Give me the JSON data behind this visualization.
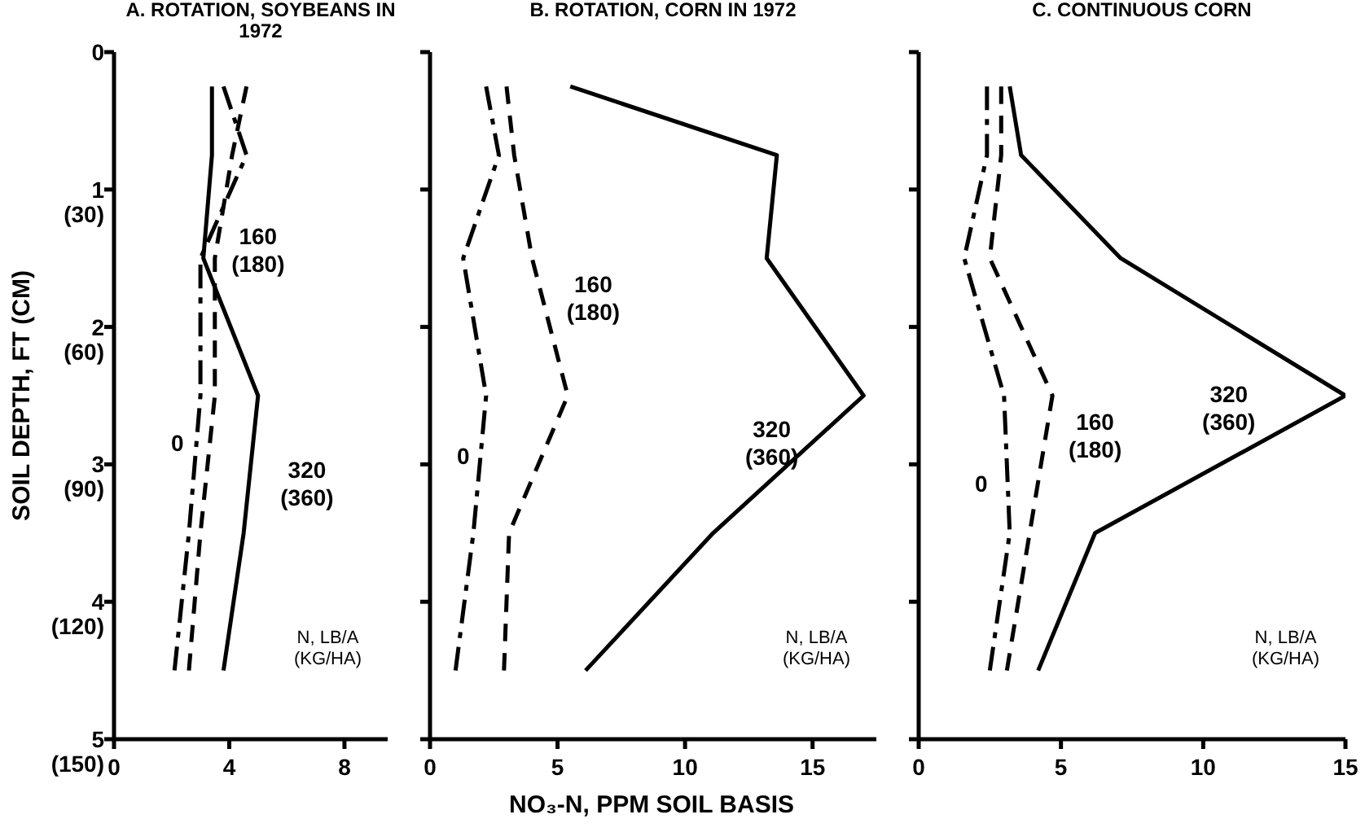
{
  "chart_data": [
    {
      "type": "line",
      "title": "A. ROTATION, SOYBEANS IN 1972",
      "y2label": "SOIL DEPTH, FT (CM)",
      "legend_title": "N, LB/A (KG/HA)",
      "xlim": [
        0,
        9.5
      ],
      "xticks": [
        0,
        4,
        8
      ],
      "ylim": [
        5,
        0
      ],
      "yticks": [
        0,
        1,
        2,
        3,
        4,
        5
      ],
      "y2lim": [
        150,
        0
      ],
      "y2ticks": [
        {
          "value": 30,
          "label": "(30)"
        },
        {
          "value": 60,
          "label": "(60)"
        },
        {
          "value": 90,
          "label": "(90)"
        },
        {
          "value": 120,
          "label": "(120)"
        },
        {
          "value": 150,
          "label": "(150)"
        }
      ],
      "series": [
        {
          "name": "0",
          "color": "#000000",
          "line_style": "dashdot",
          "x": [
            3.8,
            4.6,
            3.0,
            3.0,
            2.6,
            2.1
          ],
          "values": [
            0.25,
            0.75,
            1.5,
            2.5,
            3.5,
            4.5
          ]
        },
        {
          "name": "160 (180)",
          "color": "#000000",
          "line_style": "dashed",
          "x": [
            4.6,
            4.1,
            3.5,
            3.5,
            3.0,
            2.6
          ],
          "values": [
            0.25,
            0.75,
            1.5,
            2.5,
            3.5,
            4.5
          ]
        },
        {
          "name": "320 (360)",
          "color": "#000000",
          "line_style": "solid",
          "x": [
            3.4,
            3.4,
            3.1,
            5.0,
            4.5,
            3.8
          ],
          "values": [
            0.25,
            0.75,
            1.5,
            2.5,
            3.5,
            4.5
          ]
        }
      ]
    },
    {
      "type": "line",
      "title": "B. ROTATION, CORN IN 1972",
      "xlabel": "NO₃-N, PPM SOIL BASIS",
      "legend_title": "N, LB/A (KG/HA)",
      "xlim": [
        0,
        17.5
      ],
      "xticks": [
        0,
        5,
        10,
        15
      ],
      "ylim": [
        5,
        0
      ],
      "yticks": [
        0,
        1,
        2,
        3,
        4,
        5
      ],
      "tick_labels": "x",
      "series": [
        {
          "name": "0",
          "color": "#000000",
          "line_style": "dashdot",
          "x": [
            2.2,
            2.7,
            1.3,
            2.2,
            1.7,
            1.0
          ],
          "values": [
            0.25,
            0.75,
            1.5,
            2.5,
            3.5,
            4.5
          ]
        },
        {
          "name": "160 (180)",
          "color": "#000000",
          "line_style": "dashed",
          "x": [
            3.0,
            3.3,
            4.0,
            5.4,
            3.1,
            2.9
          ],
          "values": [
            0.25,
            0.75,
            1.5,
            2.5,
            3.5,
            4.5
          ]
        },
        {
          "name": "320 (360)",
          "color": "#000000",
          "line_style": "solid",
          "x": [
            5.5,
            13.6,
            13.2,
            17.0,
            11.1,
            6.1
          ],
          "values": [
            0.25,
            0.75,
            1.5,
            2.5,
            3.5,
            4.5
          ]
        }
      ]
    },
    {
      "type": "line",
      "title": "C. CONTINUOUS CORN",
      "legend_title": "N, LB/A (KG/HA)",
      "xlim": [
        0,
        15
      ],
      "xticks": [
        0,
        5,
        10,
        15
      ],
      "ylim": [
        5,
        0
      ],
      "yticks": [
        0,
        1,
        2,
        3,
        4,
        5
      ],
      "tick_labels": "x",
      "series": [
        {
          "name": "0",
          "color": "#000000",
          "line_style": "dashdot",
          "x": [
            2.4,
            2.4,
            1.6,
            3.0,
            3.2,
            2.5
          ],
          "values": [
            0.25,
            0.75,
            1.5,
            2.5,
            3.5,
            4.5
          ]
        },
        {
          "name": "160 (180)",
          "color": "#000000",
          "line_style": "dashed",
          "x": [
            2.9,
            2.9,
            2.5,
            4.7,
            3.9,
            3.1
          ],
          "values": [
            0.25,
            0.75,
            1.5,
            2.5,
            3.5,
            4.5
          ]
        },
        {
          "name": "320 (360)",
          "color": "#000000",
          "line_style": "solid",
          "x": [
            3.2,
            3.6,
            7.1,
            15.0,
            6.2,
            4.2
          ],
          "values": [
            0.25,
            0.75,
            1.5,
            2.5,
            3.5,
            4.5
          ]
        }
      ]
    }
  ]
}
